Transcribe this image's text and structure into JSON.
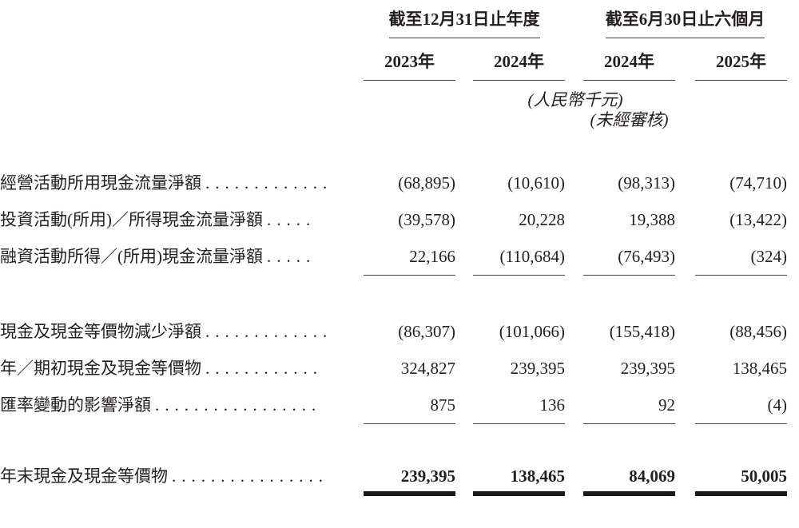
{
  "table": {
    "column_groups": [
      {
        "title": "截至12月31日止年度",
        "years": [
          "2023年",
          "2024年"
        ]
      },
      {
        "title": "截至6月30日止六個月",
        "years": [
          "2024年",
          "2025年"
        ]
      }
    ],
    "unit_note": "(人民幣千元)",
    "audit_note": "(未經審核)",
    "rows": [
      {
        "label": "經營活動所用現金流量淨額",
        "dots": ".............",
        "values": [
          "(68,895)",
          "(10,610)",
          "(98,313)",
          "(74,710)"
        ]
      },
      {
        "label": "投資活動(所用)／所得現金流量淨額",
        "dots": ".....",
        "values": [
          "(39,578)",
          "20,228",
          "19,388",
          "(13,422)"
        ]
      },
      {
        "label": "融資活動所得／(所用)現金流量淨額",
        "dots": ".....",
        "values": [
          "22,166",
          "(110,684)",
          "(76,493)",
          "(324)"
        ]
      },
      {
        "label": "現金及現金等價物減少淨額",
        "dots": ".............",
        "values": [
          "(86,307)",
          "(101,066)",
          "(155,418)",
          "(88,456)"
        ]
      },
      {
        "label": "年／期初現金及現金等價物",
        "dots": "............",
        "values": [
          "324,827",
          "239,395",
          "239,395",
          "138,465"
        ]
      },
      {
        "label": "匯率變動的影響淨額",
        "dots": ".................",
        "values": [
          "875",
          "136",
          "92",
          "(4)"
        ]
      },
      {
        "label": "年末現金及現金等價物",
        "dots": "................",
        "values": [
          "239,395",
          "138,465",
          "84,069",
          "50,005"
        ]
      }
    ]
  }
}
